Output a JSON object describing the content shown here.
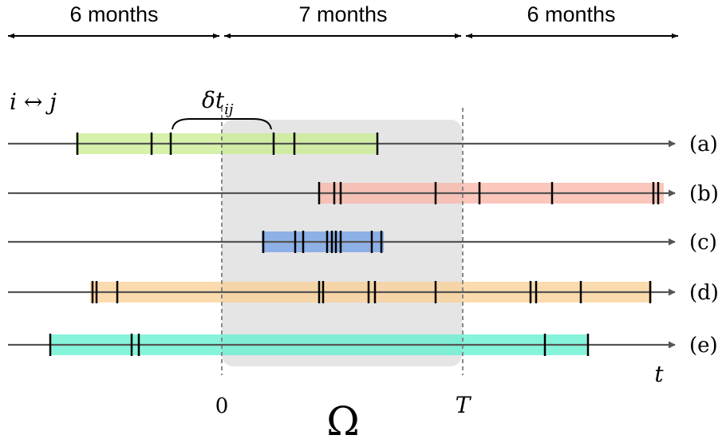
{
  "periods": [
    {
      "label": "6 months"
    },
    {
      "label": "7 months"
    },
    {
      "label": "6 months"
    }
  ],
  "pair_label": "i ↔ j",
  "gap_label": {
    "base": "δt",
    "sub": "ij"
  },
  "markers": {
    "start": "0",
    "end": "T"
  },
  "window_label": "Ω",
  "axis_label": "t",
  "colors": {
    "timeline": "#555555",
    "window": "#d0d0d0",
    "event": "#000000"
  },
  "rows": [
    {
      "label": "(a)",
      "color": "#c8ec8c"
    },
    {
      "label": "(b)",
      "color": "#f9b3a5"
    },
    {
      "label": "(c)",
      "color": "#6f9fe6"
    },
    {
      "label": "(d)",
      "color": "#f9cf91"
    },
    {
      "label": "(e)",
      "color": "#5cf0cd"
    }
  ]
}
